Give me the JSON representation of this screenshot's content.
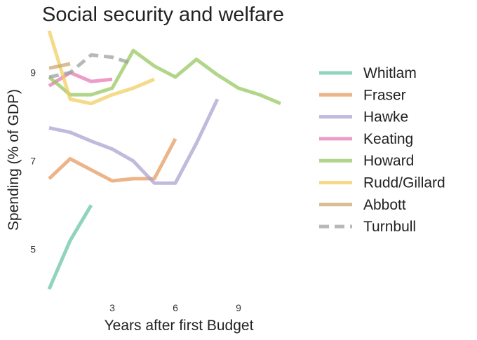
{
  "chart_data": {
    "type": "line",
    "title": "Social security and welfare",
    "xlabel": "Years after first Budget",
    "ylabel": "Spending (% of GDP)",
    "xlim": [
      -0.2,
      11.5
    ],
    "ylim": [
      3.9,
      10.2
    ],
    "xticks": [
      3,
      6,
      9
    ],
    "yticks": [
      5,
      7,
      9
    ],
    "grid": false,
    "legend_position": "right",
    "series": [
      {
        "name": "Whitlam",
        "color": "#66c2a5",
        "dashed": false,
        "x": [
          0,
          1,
          2
        ],
        "y": [
          4.1,
          5.2,
          6.0
        ]
      },
      {
        "name": "Fraser",
        "color": "#e4975c",
        "dashed": false,
        "x": [
          0,
          1,
          2,
          3,
          4,
          5,
          6
        ],
        "y": [
          6.6,
          7.05,
          6.8,
          6.55,
          6.6,
          6.6,
          7.5
        ]
      },
      {
        "name": "Hawke",
        "color": "#a89fcf",
        "dashed": false,
        "x": [
          0,
          1,
          2,
          3,
          4,
          5,
          6,
          7,
          8
        ],
        "y": [
          7.75,
          7.65,
          7.45,
          7.27,
          7.0,
          6.5,
          6.5,
          7.4,
          8.4
        ]
      },
      {
        "name": "Keating",
        "color": "#e377b1",
        "dashed": false,
        "x": [
          0,
          1,
          2,
          3
        ],
        "y": [
          8.7,
          9.0,
          8.8,
          8.85
        ]
      },
      {
        "name": "Howard",
        "color": "#94c65c",
        "dashed": false,
        "x": [
          0,
          1,
          2,
          3,
          4,
          5,
          6,
          7,
          8,
          9,
          10,
          11
        ],
        "y": [
          8.9,
          8.5,
          8.5,
          8.65,
          9.5,
          9.15,
          8.9,
          9.3,
          8.95,
          8.65,
          8.5,
          8.3
        ]
      },
      {
        "name": "Rudd/Gillard",
        "color": "#f0cc5c",
        "dashed": false,
        "x": [
          0,
          1,
          2,
          3,
          4,
          5
        ],
        "y": [
          9.95,
          8.4,
          8.3,
          8.5,
          8.65,
          8.85
        ]
      },
      {
        "name": "Abbott",
        "color": "#c9a56a",
        "dashed": false,
        "x": [
          0,
          1
        ],
        "y": [
          9.1,
          9.2
        ]
      },
      {
        "name": "Turnbull",
        "color": "#9d9d9d",
        "dashed": true,
        "x": [
          0,
          1,
          2,
          3,
          4
        ],
        "y": [
          8.9,
          9.0,
          9.4,
          9.35,
          9.2
        ]
      }
    ]
  }
}
